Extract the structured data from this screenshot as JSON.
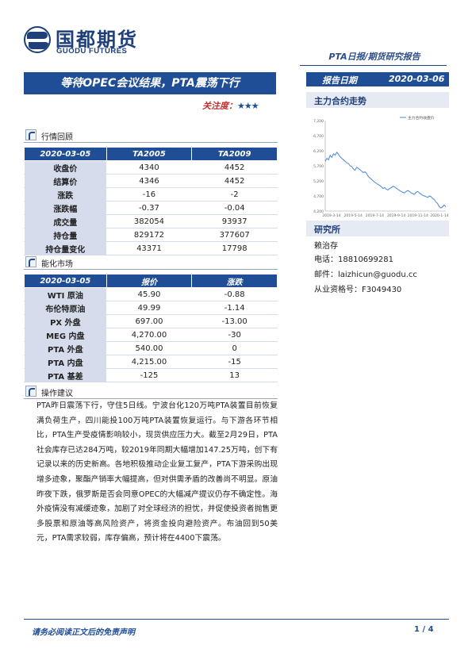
{
  "brand": {
    "name_cn": "国都期货",
    "name_en": "GUODU FUTURES"
  },
  "header": {
    "report_type": "PTA日报/期货研究报告",
    "date_label": "报告日期",
    "date_value": "2020-03-06",
    "title": "等待OPEC会议结果，PTA震荡下行",
    "attention_label": "关注度：",
    "attention_stars": "★★★"
  },
  "section_review": {
    "label": "行情回顾",
    "headers": [
      "2020-03-05",
      "TA2005",
      "TA2009"
    ],
    "rows": [
      [
        "收盘价",
        "4340",
        "4452"
      ],
      [
        "结算价",
        "4346",
        "4452"
      ],
      [
        "涨跌",
        "-16",
        "-2"
      ],
      [
        "涨跌幅",
        "-0.37",
        "-0.04"
      ],
      [
        "成交量",
        "382054",
        "93937"
      ],
      [
        "持仓量",
        "829172",
        "377607"
      ],
      [
        "持仓量变化",
        "43371",
        "17798"
      ]
    ]
  },
  "section_energy": {
    "label": "能化市场",
    "headers": [
      "2020-03-05",
      "报价",
      "涨跌"
    ],
    "rows": [
      [
        "WTI 原油",
        "45.90",
        "-0.88"
      ],
      [
        "布伦特原油",
        "49.99",
        "-1.14"
      ],
      [
        "PX 外盘",
        "697.00",
        "-13.00"
      ],
      [
        "MEG 内盘",
        "4,270.00",
        "-30"
      ],
      [
        "PTA 外盘",
        "540.00",
        "0"
      ],
      [
        "PTA 内盘",
        "4,215.00",
        "-15"
      ],
      [
        "PTA 基差",
        "-125",
        "13"
      ]
    ]
  },
  "section_advice": {
    "label": "操作建议",
    "text": "PTA昨日震荡下行，守住5日线。宁波台化120万吨PTA装置目前恢复满负荷生产，四川能投100万吨PTA装置恢复运行。与下游各环节相比，PTA生产受疫情影响较小，现货供应压力大。截至2月29日，PTA社会库存已达284万吨，较2019年同期大幅增加147.25万吨，创下有记录以来的历史新高。各地积极推动企业复工复产，PTA下游采购出现增多迹象，聚酯产销率大幅提高，但对供需矛盾的改善尚不明显。原油昨夜下跌，俄罗斯是否会同意OPEC的大幅减产提议仍存不确定性。海外疫情没有减缓迹象，加剧了对全球经济的担忧，并促使投资者抛售更多股票和原油等高风险资产，将资金投向避险资产。布油回到50美元，PTA需求较弱，库存偏高，预计将在4400下震荡。"
  },
  "right_panel": {
    "trend_label": "主力合约走势",
    "institute_label": "研究所",
    "analyst": "赖治存",
    "phone_label": "电话：",
    "phone": "18810699281",
    "email_label": "邮件：",
    "email": "laizhicun@guodu.cc",
    "license_label": "从业资格号：",
    "license": "F3049430"
  },
  "chart_data": {
    "type": "line",
    "series": [
      {
        "name": "主力合约收盘价",
        "values": [
          5850,
          5950,
          5900,
          6050,
          5980,
          6100,
          6050,
          6150,
          6080,
          6000,
          5950,
          5900,
          5850,
          5800,
          5780,
          5700,
          5680,
          5600,
          5550,
          5650,
          5620,
          5580,
          5520,
          5480,
          5500,
          5450,
          5350,
          5300,
          5250,
          5200,
          5150,
          5120,
          5080,
          5050,
          5000,
          4950,
          4980,
          4920,
          4900,
          4950,
          4980,
          5020,
          5000,
          4960,
          4920,
          4880,
          4850,
          4820,
          4800,
          4850,
          4880,
          4850,
          4800,
          4780,
          4750,
          4820,
          4850,
          4800,
          4760,
          4720,
          4700,
          4680,
          4650,
          4700,
          4680,
          4620,
          4580,
          4500,
          4450,
          4350,
          4300,
          4340,
          4400,
          4340
        ]
      }
    ],
    "x_ticks": [
      "2019-3-14",
      "2019-5-14",
      "2019-7-14",
      "2019-9-14",
      "2019-11-14",
      "2020-1-14"
    ],
    "y_ticks": [
      "4,200",
      "4,700",
      "5,200",
      "5,700",
      "6,200",
      "6,700",
      "7,200"
    ],
    "ylim": [
      4200,
      7200
    ],
    "grid": false,
    "legend_position": "top-right"
  },
  "footer": {
    "disclaimer": "请务必阅读正文后的免责声明",
    "page": "1 / 4"
  }
}
